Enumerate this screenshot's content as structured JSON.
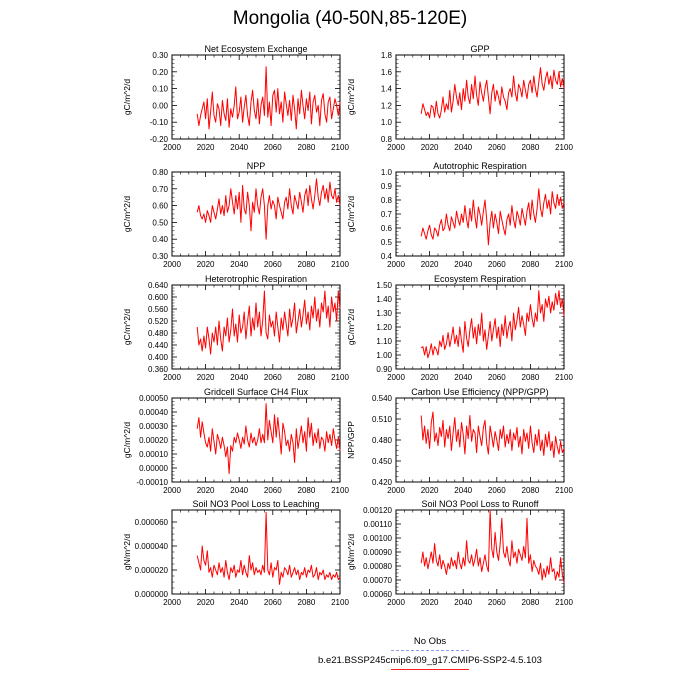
{
  "title": "Mongolia (40-50N,85-120E)",
  "colors": {
    "model": "#ff0000",
    "obs": "#8c9cf0",
    "axis": "#000000"
  },
  "legend": {
    "obs_label": "No Obs",
    "model_label": "b.e21.BSSP245cmip6.f09_g17.CMIP6-SSP2-4.5.103"
  },
  "chart_data": [
    {
      "type": "line",
      "title": "Net Ecosystem Exchange",
      "ylabel": "gC/m^2/d",
      "xlim": [
        2000,
        2100
      ],
      "xticks": [
        2000,
        2020,
        2040,
        2060,
        2080,
        2100
      ],
      "ylim": [
        -0.2,
        0.3
      ],
      "yticks": [
        "-0.20",
        "-0.10",
        "0.00",
        "0.10",
        "0.20",
        "0.30"
      ],
      "yticks_v": [
        -0.2,
        -0.1,
        0,
        0.1,
        0.2,
        0.3
      ],
      "x_start": 2015,
      "values": [
        -0.05,
        -0.12,
        -0.06,
        -0.02,
        0.02,
        -0.08,
        0.04,
        -0.14,
        -0.04,
        0.08,
        -0.06,
        -0.1,
        0.01,
        -0.02,
        -0.12,
        0.03,
        -0.05,
        -0.09,
        0.04,
        -0.13,
        -0.02,
        -0.07,
        0.0,
        0.11,
        -0.08,
        -0.04,
        0.05,
        -0.1,
        -0.01,
        0.06,
        -0.06,
        -0.12,
        0.02,
        0.09,
        -0.03,
        -0.08,
        0.04,
        -0.11,
        0.0,
        0.05,
        -0.06,
        0.23,
        -0.07,
        0.02,
        -0.12,
        0.06,
        0.09,
        -0.04,
        0.1,
        -0.05,
        0.02,
        -0.1,
        0.08,
        0.01,
        -0.06,
        0.03,
        -0.09,
        0.06,
        -0.02,
        -0.14,
        0.04,
        -0.05,
        0.09,
        0.0,
        -0.08,
        0.04,
        -0.03,
        0.08,
        -0.11,
        0.02,
        0.06,
        -0.04,
        0.0,
        -0.12,
        0.03,
        0.07,
        -0.05,
        -0.1,
        0.02,
        0.05,
        -0.08,
        -0.02,
        0.04,
        0.0,
        -0.06,
        0.02
      ]
    },
    {
      "type": "line",
      "title": "GPP",
      "ylabel": "gC/m^2/d",
      "xlim": [
        2000,
        2100
      ],
      "xticks": [
        2000,
        2020,
        2040,
        2060,
        2080,
        2100
      ],
      "ylim": [
        0.8,
        1.8
      ],
      "yticks": [
        "0.8",
        "1.0",
        "1.2",
        "1.4",
        "1.6",
        "1.8"
      ],
      "yticks_v": [
        0.8,
        1.0,
        1.2,
        1.4,
        1.6,
        1.8
      ],
      "x_start": 2015,
      "values": [
        1.1,
        1.22,
        1.15,
        1.08,
        1.12,
        1.05,
        1.2,
        1.18,
        1.06,
        1.25,
        1.1,
        1.05,
        1.15,
        1.3,
        1.12,
        1.22,
        1.15,
        1.38,
        1.12,
        1.25,
        1.45,
        1.3,
        1.2,
        1.35,
        1.15,
        1.4,
        1.25,
        1.5,
        1.3,
        1.22,
        1.45,
        1.28,
        1.55,
        1.32,
        1.2,
        1.48,
        1.35,
        1.25,
        1.4,
        1.5,
        1.3,
        1.1,
        1.35,
        1.45,
        1.25,
        1.38,
        1.3,
        1.2,
        1.42,
        1.3,
        1.25,
        1.15,
        1.35,
        1.4,
        1.3,
        1.55,
        1.35,
        1.25,
        1.45,
        1.4,
        1.3,
        1.5,
        1.38,
        1.28,
        1.45,
        1.5,
        1.35,
        1.55,
        1.4,
        1.3,
        1.48,
        1.65,
        1.45,
        1.38,
        1.52,
        1.6,
        1.45,
        1.55,
        1.4,
        1.62,
        1.5,
        1.45,
        1.6,
        1.42,
        1.52,
        1.4
      ]
    },
    {
      "type": "line",
      "title": "NPP",
      "ylabel": "gC/m^2/d",
      "xlim": [
        2000,
        2100
      ],
      "xticks": [
        2000,
        2020,
        2040,
        2060,
        2080,
        2100
      ],
      "ylim": [
        0.3,
        0.8
      ],
      "yticks": [
        "0.30",
        "0.40",
        "0.50",
        "0.60",
        "0.70",
        "0.80"
      ],
      "yticks_v": [
        0.3,
        0.4,
        0.5,
        0.6,
        0.7,
        0.8
      ],
      "x_start": 2015,
      "values": [
        0.56,
        0.6,
        0.54,
        0.52,
        0.55,
        0.5,
        0.57,
        0.54,
        0.5,
        0.6,
        0.56,
        0.52,
        0.58,
        0.64,
        0.55,
        0.6,
        0.54,
        0.66,
        0.56,
        0.6,
        0.7,
        0.62,
        0.55,
        0.66,
        0.58,
        0.68,
        0.5,
        0.72,
        0.58,
        0.55,
        0.68,
        0.6,
        0.45,
        0.62,
        0.56,
        0.7,
        0.6,
        0.55,
        0.65,
        0.7,
        0.6,
        0.4,
        0.6,
        0.66,
        0.58,
        0.63,
        0.6,
        0.52,
        0.65,
        0.6,
        0.56,
        0.52,
        0.62,
        0.65,
        0.58,
        0.7,
        0.6,
        0.55,
        0.66,
        0.62,
        0.58,
        0.68,
        0.62,
        0.56,
        0.66,
        0.7,
        0.6,
        0.72,
        0.64,
        0.58,
        0.66,
        0.76,
        0.65,
        0.6,
        0.68,
        0.72,
        0.64,
        0.7,
        0.62,
        0.74,
        0.66,
        0.64,
        0.7,
        0.62,
        0.66,
        0.6
      ]
    },
    {
      "type": "line",
      "title": "Autotrophic Respiration",
      "ylabel": "gC/m^2/d",
      "xlim": [
        2000,
        2100
      ],
      "xticks": [
        2000,
        2020,
        2040,
        2060,
        2080,
        2100
      ],
      "ylim": [
        0.4,
        1.0
      ],
      "yticks": [
        "0.4",
        "0.5",
        "0.6",
        "0.7",
        "0.8",
        "0.9",
        "1.0"
      ],
      "yticks_v": [
        0.4,
        0.5,
        0.6,
        0.7,
        0.8,
        0.9,
        1.0
      ],
      "x_start": 2015,
      "values": [
        0.54,
        0.6,
        0.56,
        0.52,
        0.58,
        0.62,
        0.55,
        0.52,
        0.6,
        0.58,
        0.54,
        0.62,
        0.66,
        0.58,
        0.6,
        0.7,
        0.62,
        0.58,
        0.68,
        0.64,
        0.6,
        0.72,
        0.66,
        0.62,
        0.7,
        0.64,
        0.76,
        0.66,
        0.6,
        0.74,
        0.65,
        0.8,
        0.68,
        0.6,
        0.75,
        0.7,
        0.62,
        0.72,
        0.8,
        0.66,
        0.48,
        0.64,
        0.72,
        0.6,
        0.7,
        0.64,
        0.56,
        0.72,
        0.66,
        0.6,
        0.55,
        0.66,
        0.7,
        0.62,
        0.76,
        0.66,
        0.6,
        0.72,
        0.68,
        0.62,
        0.74,
        0.68,
        0.62,
        0.72,
        0.78,
        0.66,
        0.8,
        0.7,
        0.64,
        0.74,
        0.88,
        0.74,
        0.68,
        0.78,
        0.84,
        0.74,
        0.8,
        0.7,
        0.86,
        0.78,
        0.74,
        0.84,
        0.76,
        0.82,
        0.74,
        0.78
      ]
    },
    {
      "type": "line",
      "title": "Heterotrophic Respiration",
      "ylabel": "gC/m^2/d",
      "xlim": [
        2000,
        2100
      ],
      "xticks": [
        2000,
        2020,
        2040,
        2060,
        2080,
        2100
      ],
      "ylim": [
        0.36,
        0.64
      ],
      "yticks": [
        "0.360",
        "0.400",
        "0.440",
        "0.480",
        "0.520",
        "0.560",
        "0.600",
        "0.640"
      ],
      "yticks_v": [
        0.36,
        0.4,
        0.44,
        0.48,
        0.52,
        0.56,
        0.6,
        0.64
      ],
      "x_start": 2015,
      "values": [
        0.5,
        0.44,
        0.46,
        0.42,
        0.47,
        0.43,
        0.5,
        0.46,
        0.41,
        0.48,
        0.45,
        0.5,
        0.44,
        0.52,
        0.46,
        0.42,
        0.5,
        0.47,
        0.53,
        0.45,
        0.49,
        0.56,
        0.47,
        0.51,
        0.45,
        0.54,
        0.48,
        0.5,
        0.55,
        0.46,
        0.52,
        0.57,
        0.47,
        0.53,
        0.49,
        0.58,
        0.5,
        0.55,
        0.47,
        0.52,
        0.62,
        0.48,
        0.46,
        0.54,
        0.5,
        0.52,
        0.47,
        0.55,
        0.5,
        0.45,
        0.53,
        0.49,
        0.55,
        0.51,
        0.47,
        0.56,
        0.5,
        0.53,
        0.58,
        0.48,
        0.52,
        0.56,
        0.5,
        0.54,
        0.59,
        0.51,
        0.55,
        0.49,
        0.57,
        0.53,
        0.6,
        0.52,
        0.56,
        0.5,
        0.58,
        0.55,
        0.62,
        0.53,
        0.57,
        0.5,
        0.6,
        0.55,
        0.58,
        0.52,
        0.62,
        0.56
      ]
    },
    {
      "type": "line",
      "title": "Ecosystem Respiration",
      "ylabel": "gC/m^2/d",
      "xlim": [
        2000,
        2100
      ],
      "xticks": [
        2000,
        2020,
        2040,
        2060,
        2080,
        2100
      ],
      "ylim": [
        0.9,
        1.5
      ],
      "yticks": [
        "0.90",
        "1.00",
        "1.10",
        "1.20",
        "1.30",
        "1.40",
        "1.50"
      ],
      "yticks_v": [
        0.9,
        1.0,
        1.1,
        1.2,
        1.3,
        1.4,
        1.5
      ],
      "x_start": 2015,
      "values": [
        1.05,
        1.06,
        1.0,
        1.06,
        0.98,
        1.02,
        1.08,
        1.0,
        1.06,
        1.04,
        1.0,
        1.1,
        1.06,
        1.14,
        1.04,
        1.08,
        1.16,
        1.06,
        1.12,
        1.2,
        1.08,
        1.14,
        1.06,
        1.2,
        1.1,
        1.02,
        1.24,
        1.12,
        1.06,
        1.18,
        1.26,
        1.12,
        1.2,
        1.08,
        1.22,
        1.14,
        1.3,
        1.1,
        1.18,
        1.04,
        1.14,
        1.24,
        1.1,
        1.18,
        1.26,
        1.12,
        1.2,
        1.06,
        1.22,
        1.14,
        1.28,
        1.12,
        1.2,
        1.24,
        1.1,
        1.3,
        1.18,
        1.25,
        1.34,
        1.2,
        1.28,
        1.22,
        1.14,
        1.3,
        1.24,
        1.36,
        1.26,
        1.2,
        1.3,
        1.24,
        1.46,
        1.3,
        1.36,
        1.24,
        1.4,
        1.34,
        1.42,
        1.3,
        1.38,
        1.32,
        1.44,
        1.36,
        1.46,
        1.34,
        1.4,
        1.28
      ]
    },
    {
      "type": "line",
      "title": "Gridcell Surface CH4 Flux",
      "ylabel": "gC/m^2/d",
      "xlim": [
        2000,
        2100
      ],
      "xticks": [
        2000,
        2020,
        2040,
        2060,
        2080,
        2100
      ],
      "ylim": [
        -0.0001,
        0.0005
      ],
      "yticks": [
        "-0.00010",
        "0.00000",
        "0.00010",
        "0.00020",
        "0.00030",
        "0.00040",
        "0.00050"
      ],
      "yticks_v": [
        -0.0001,
        0.0,
        0.0001,
        0.0002,
        0.0003,
        0.0004,
        0.0005
      ],
      "x_start": 2015,
      "values": [
        0.00028,
        0.00036,
        0.00022,
        0.00033,
        0.00025,
        0.00018,
        0.00015,
        0.00022,
        0.00012,
        0.00028,
        0.00019,
        0.0001,
        0.00024,
        0.0002,
        0.00014,
        0.00022,
        0.00016,
        8e-05,
        0.00015,
        -4e-05,
        0.00016,
        0.00012,
        0.00022,
        0.00018,
        0.00025,
        0.0002,
        0.00014,
        0.00022,
        0.00017,
        0.0003,
        0.0002,
        0.00015,
        0.00025,
        0.00018,
        0.00022,
        0.00016,
        0.0002,
        0.00028,
        0.00018,
        0.00024,
        0.00018,
        0.00046,
        0.0002,
        0.00034,
        0.00026,
        0.00018,
        0.00038,
        0.00022,
        0.00036,
        0.00024,
        0.0001,
        0.00032,
        0.00026,
        0.00016,
        0.0002,
        0.00012,
        0.00024,
        0.00018,
        4e-05,
        0.00028,
        0.00014,
        0.00022,
        0.0003,
        0.00018,
        0.00026,
        0.00012,
        0.00036,
        0.00022,
        0.00032,
        0.00016,
        0.00025,
        0.00018,
        0.00028,
        0.00014,
        0.00022,
        0.0002,
        0.00012,
        0.00026,
        0.00018,
        0.00024,
        0.00016,
        0.00028,
        0.0002,
        0.00014,
        0.00022,
        0.00012
      ]
    },
    {
      "type": "line",
      "title": "Carbon Use Efficiency (NPP/GPP)",
      "ylabel": "NPP/GPP",
      "xlim": [
        2000,
        2100
      ],
      "xticks": [
        2000,
        2020,
        2040,
        2060,
        2080,
        2100
      ],
      "ylim": [
        0.42,
        0.54
      ],
      "yticks": [
        "0.420",
        "0.450",
        "0.480",
        "0.510",
        "0.540"
      ],
      "yticks_v": [
        0.42,
        0.45,
        0.48,
        0.51,
        0.54
      ],
      "x_start": 2015,
      "values": [
        0.515,
        0.48,
        0.5,
        0.475,
        0.495,
        0.468,
        0.505,
        0.52,
        0.478,
        0.49,
        0.472,
        0.498,
        0.485,
        0.508,
        0.47,
        0.495,
        0.482,
        0.5,
        0.465,
        0.49,
        0.512,
        0.478,
        0.495,
        0.47,
        0.505,
        0.488,
        0.46,
        0.5,
        0.482,
        0.515,
        0.478,
        0.495,
        0.49,
        0.462,
        0.5,
        0.485,
        0.472,
        0.498,
        0.508,
        0.475,
        0.46,
        0.5,
        0.485,
        0.47,
        0.492,
        0.48,
        0.465,
        0.495,
        0.482,
        0.5,
        0.47,
        0.488,
        0.475,
        0.495,
        0.465,
        0.49,
        0.48,
        0.498,
        0.47,
        0.485,
        0.46,
        0.495,
        0.478,
        0.49,
        0.468,
        0.5,
        0.476,
        0.462,
        0.488,
        0.472,
        0.495,
        0.465,
        0.48,
        0.458,
        0.488,
        0.47,
        0.492,
        0.465,
        0.478,
        0.455,
        0.485,
        0.47,
        0.46,
        0.478,
        0.462,
        0.468
      ]
    },
    {
      "type": "line",
      "title": "Soil NO3 Pool Loss to Leaching",
      "ylabel": "gN/m^2/d",
      "xlim": [
        2000,
        2100
      ],
      "xticks": [
        2000,
        2020,
        2040,
        2060,
        2080,
        2100
      ],
      "ylim": [
        0,
        7e-05
      ],
      "yticks": [
        "0.000000",
        "0.000020",
        "0.000040",
        "0.000060"
      ],
      "yticks_v": [
        0,
        2e-05,
        4e-05,
        6e-05
      ],
      "x_start": 2015,
      "values": [
        3.2e-05,
        2.6e-05,
        2e-05,
        4e-05,
        2.8e-05,
        2.4e-05,
        3.6e-05,
        1.8e-05,
        2.2e-05,
        1.4e-05,
        2.4e-05,
        2e-05,
        1.6e-05,
        2.6e-05,
        1.8e-05,
        2.2e-05,
        1.4e-05,
        2.8e-05,
        1.8e-05,
        1.2e-05,
        2.2e-05,
        1.8e-05,
        2.4e-05,
        1.4e-05,
        2e-05,
        1.8e-05,
        2.8e-05,
        1.6e-05,
        2.4e-05,
        1.8e-05,
        1.4e-05,
        3.2e-05,
        2e-05,
        2.6e-05,
        1.6e-05,
        2.2e-05,
        1.8e-05,
        2e-05,
        1.6e-05,
        2.4e-05,
        1.8e-05,
        6.8e-05,
        2e-05,
        1.6e-05,
        2.6e-05,
        1.4e-05,
        2.2e-05,
        2e-05,
        2.8e-05,
        8e-06,
        1.8e-05,
        1.4e-05,
        2.2e-05,
        2e-05,
        1.6e-05,
        2.4e-05,
        1.4e-05,
        1.8e-05,
        2.2e-05,
        1.6e-05,
        2e-05,
        1.2e-05,
        1.8e-05,
        1.6e-05,
        2.2e-05,
        1.4e-05,
        2e-05,
        1.8e-05,
        2.4e-05,
        1.4e-05,
        1.6e-05,
        2.2e-05,
        1.2e-05,
        1.8e-05,
        1.6e-05,
        2e-05,
        1.2e-05,
        1.6e-05,
        1.4e-05,
        1.8e-05,
        1.2e-05,
        1.6e-05,
        1.4e-05,
        1.8e-05,
        1.2e-05,
        1.4e-05
      ]
    },
    {
      "type": "line",
      "title": "Soil NO3 Pool Loss to Runoff",
      "ylabel": "gN/m^2/d",
      "xlim": [
        2000,
        2100
      ],
      "xticks": [
        2000,
        2020,
        2040,
        2060,
        2080,
        2100
      ],
      "ylim": [
        0.0006,
        0.0012
      ],
      "yticks": [
        "0.00060",
        "0.00070",
        "0.00080",
        "0.00090",
        "0.00100",
        "0.00110",
        "0.00120"
      ],
      "yticks_v": [
        0.0006,
        0.0007,
        0.0008,
        0.0009,
        0.001,
        0.0011,
        0.0012
      ],
      "x_start": 2015,
      "values": [
        0.00082,
        0.0009,
        0.0008,
        0.00086,
        0.00078,
        0.00084,
        0.0009,
        0.00082,
        0.00096,
        0.00084,
        0.0008,
        0.00088,
        0.00078,
        0.00084,
        0.0008,
        0.00074,
        0.00082,
        0.00078,
        0.00086,
        0.0008,
        0.00084,
        0.00078,
        0.0009,
        0.00082,
        0.00078,
        0.00086,
        0.0008,
        0.00098,
        0.00084,
        0.00082,
        0.00088,
        0.0008,
        0.00085,
        0.00092,
        0.0008,
        0.00086,
        0.00076,
        0.00082,
        0.00088,
        0.0008,
        0.00076,
        0.0012,
        0.00092,
        0.00086,
        0.00104,
        0.0009,
        0.00084,
        0.00096,
        0.00114,
        0.0009,
        0.00086,
        0.00094,
        0.00084,
        0.0008,
        0.00098,
        0.00086,
        0.0009,
        0.00082,
        0.00092,
        0.00088,
        0.00084,
        0.00094,
        0.00086,
        0.00114,
        0.00082,
        0.00088,
        0.00076,
        0.00084,
        0.0008,
        0.00078,
        0.00074,
        0.00082,
        0.0007,
        0.00078,
        0.00072,
        0.0008,
        0.00074,
        0.00086,
        0.00076,
        0.00078,
        0.0007,
        0.00076,
        0.00072,
        0.00086,
        0.00074,
        0.00068
      ]
    }
  ]
}
